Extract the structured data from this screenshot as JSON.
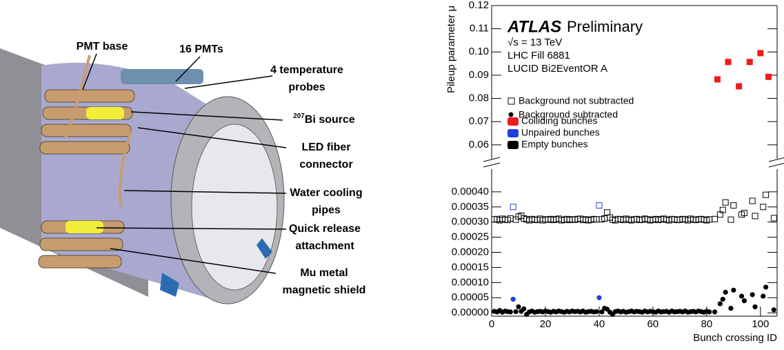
{
  "diagram": {
    "labels": [
      {
        "lines": [
          "PMT base"
        ]
      },
      {
        "lines": [
          "16 PMTs"
        ]
      },
      {
        "lines": [
          "4 temperature",
          "probes"
        ]
      },
      {
        "sup": "207",
        "lines": [
          "Bi source"
        ]
      },
      {
        "lines": [
          "LED fiber",
          "connector"
        ]
      },
      {
        "lines": [
          "Water cooling",
          "pipes"
        ]
      },
      {
        "lines": [
          "Quick release",
          "attachment"
        ]
      },
      {
        "lines": [
          "Mu metal",
          "magnetic shield"
        ]
      }
    ]
  },
  "chart_data": {
    "type": "scatter",
    "ylabel": "Pileup parameter μ",
    "xlabel": "Bunch crossing ID",
    "annotations": [
      "ATLAS",
      "Preliminary",
      "√s = 13 TeV",
      "LHC Fill 6881",
      "LUCID Bi2EventOR A"
    ],
    "legend_markers": [
      "Background not subtracted",
      "Background subtracted"
    ],
    "xlim": [
      0,
      106.2
    ],
    "xticks": [
      0,
      20,
      40,
      60,
      80,
      100
    ],
    "panels": [
      {
        "ylim": [
          0.054,
          0.12
        ],
        "yticks": [
          0.06,
          0.07,
          0.08,
          0.09,
          {
            "value": 0.1,
            "label": "0.10"
          },
          0.11,
          0.12
        ]
      },
      {
        "ylim": [
          -1.1e-05,
          0.000475
        ],
        "yticks": [
          {
            "value": 0,
            "label": "0.00000"
          },
          {
            "value": 5e-05,
            "label": "0.00005"
          },
          {
            "value": 0.0001,
            "label": "0.00010"
          },
          {
            "value": 0.00015,
            "label": "0.00015"
          },
          {
            "value": 0.0002,
            "label": "0.00020"
          },
          {
            "value": 0.00025,
            "label": "0.00025"
          },
          {
            "value": 0.0003,
            "label": "0.00030"
          },
          {
            "value": 0.00035,
            "label": "0.00035"
          },
          {
            "value": 0.0004,
            "label": "0.00040"
          }
        ]
      }
    ],
    "series": [
      {
        "name": "Colliding bunches",
        "color": "#ee1c1c",
        "x": [
          84,
          88,
          92,
          96,
          100,
          103
        ],
        "not_subtracted": [
          0.0882,
          0.0957,
          0.0852,
          0.0957,
          0.0995,
          0.0893
        ],
        "subtracted": [
          0.0879,
          0.0954,
          0.0849,
          0.0954,
          0.0992,
          0.089
        ]
      },
      {
        "name": "Unpaired bunches",
        "color": "#1f3fd8",
        "x": [
          8,
          40
        ],
        "not_subtracted": [
          0.00035,
          0.000355
        ],
        "subtracted": [
          4.5e-05,
          5e-05
        ]
      },
      {
        "name": "Empty bunches",
        "color": "#000000",
        "x": [
          1,
          2,
          3,
          4,
          5,
          6,
          7,
          9,
          10,
          11,
          12,
          13,
          14,
          15,
          16,
          17,
          18,
          19,
          20,
          21,
          22,
          23,
          24,
          25,
          26,
          27,
          28,
          29,
          30,
          31,
          32,
          33,
          34,
          35,
          36,
          37,
          38,
          39,
          41,
          42,
          43,
          44,
          45,
          46,
          47,
          48,
          49,
          50,
          51,
          52,
          53,
          54,
          55,
          56,
          57,
          58,
          59,
          60,
          61,
          62,
          63,
          64,
          65,
          66,
          67,
          68,
          69,
          70,
          71,
          72,
          73,
          74,
          75,
          76,
          77,
          78,
          79,
          80,
          81,
          83,
          85,
          86,
          87,
          89,
          90,
          93,
          94,
          97,
          98,
          101,
          102,
          105
        ],
        "not_subtracted": [
          0.000309,
          0.00031,
          0.000306,
          0.000311,
          0.000308,
          0.000307,
          0.000312,
          0.000308,
          0.000318,
          0.000321,
          0.000312,
          0.000309,
          0.000306,
          0.00031,
          0.000308,
          0.000307,
          0.000311,
          0.000306,
          0.000309,
          0.000308,
          0.00031,
          0.000307,
          0.000309,
          0.000311,
          0.000306,
          0.000308,
          0.00031,
          0.000307,
          0.000309,
          0.000308,
          0.00031,
          0.000311,
          0.000307,
          0.000309,
          0.000306,
          0.000308,
          0.00031,
          0.000309,
          0.000309,
          0.000312,
          0.000332,
          0.000315,
          0.000308,
          0.000306,
          0.00031,
          0.000309,
          0.000307,
          0.000311,
          0.000308,
          0.000306,
          0.000309,
          0.00031,
          0.000307,
          0.000308,
          0.000311,
          0.000309,
          0.000306,
          0.000308,
          0.00031,
          0.000307,
          0.000309,
          0.000311,
          0.000308,
          0.000306,
          0.00031,
          0.000309,
          0.000307,
          0.000308,
          0.00031,
          0.000309,
          0.000306,
          0.000311,
          0.000308,
          0.000307,
          0.000309,
          0.00031,
          0.000308,
          0.000306,
          0.000309,
          0.00031,
          0.000325,
          0.00034,
          0.000365,
          0.000308,
          0.000355,
          0.000325,
          0.00033,
          0.00037,
          0.00032,
          0.00035,
          0.00039,
          0.000313
        ],
        "subtracted": [
          5e-06,
          3e-06,
          8e-06,
          2e-06,
          6e-06,
          4e-06,
          3e-06,
          4e-06,
          2e-05,
          5e-06,
          1.3e-05,
          -5e-06,
          3e-06,
          6e-06,
          2e-06,
          4e-06,
          5e-06,
          3e-06,
          6e-06,
          4e-06,
          2e-06,
          5e-06,
          3e-06,
          6e-06,
          4e-06,
          2e-06,
          5e-06,
          3e-06,
          6e-06,
          4e-06,
          5e-06,
          3e-06,
          6e-06,
          2e-06,
          4e-06,
          5e-06,
          3e-06,
          4e-06,
          3e-06,
          1.5e-05,
          1.2e-05,
          2e-06,
          -5e-06,
          4e-06,
          6e-06,
          3e-06,
          5e-06,
          2e-06,
          4e-06,
          6e-06,
          3e-06,
          5e-06,
          4e-06,
          2e-06,
          6e-06,
          3e-06,
          5e-06,
          4e-06,
          2e-06,
          6e-06,
          3e-06,
          4e-06,
          5e-06,
          2e-06,
          6e-06,
          3e-06,
          4e-06,
          5e-06,
          3e-06,
          6e-06,
          2e-06,
          4e-06,
          5e-06,
          3e-06,
          6e-06,
          4e-06,
          2e-06,
          5e-06,
          3e-06,
          3e-06,
          3e-05,
          4.5e-05,
          6.8e-05,
          1.5e-05,
          7.5e-05,
          5.5e-05,
          4e-05,
          6e-05,
          2e-05,
          5.5e-05,
          8.5e-05,
          1e-05
        ]
      }
    ]
  }
}
